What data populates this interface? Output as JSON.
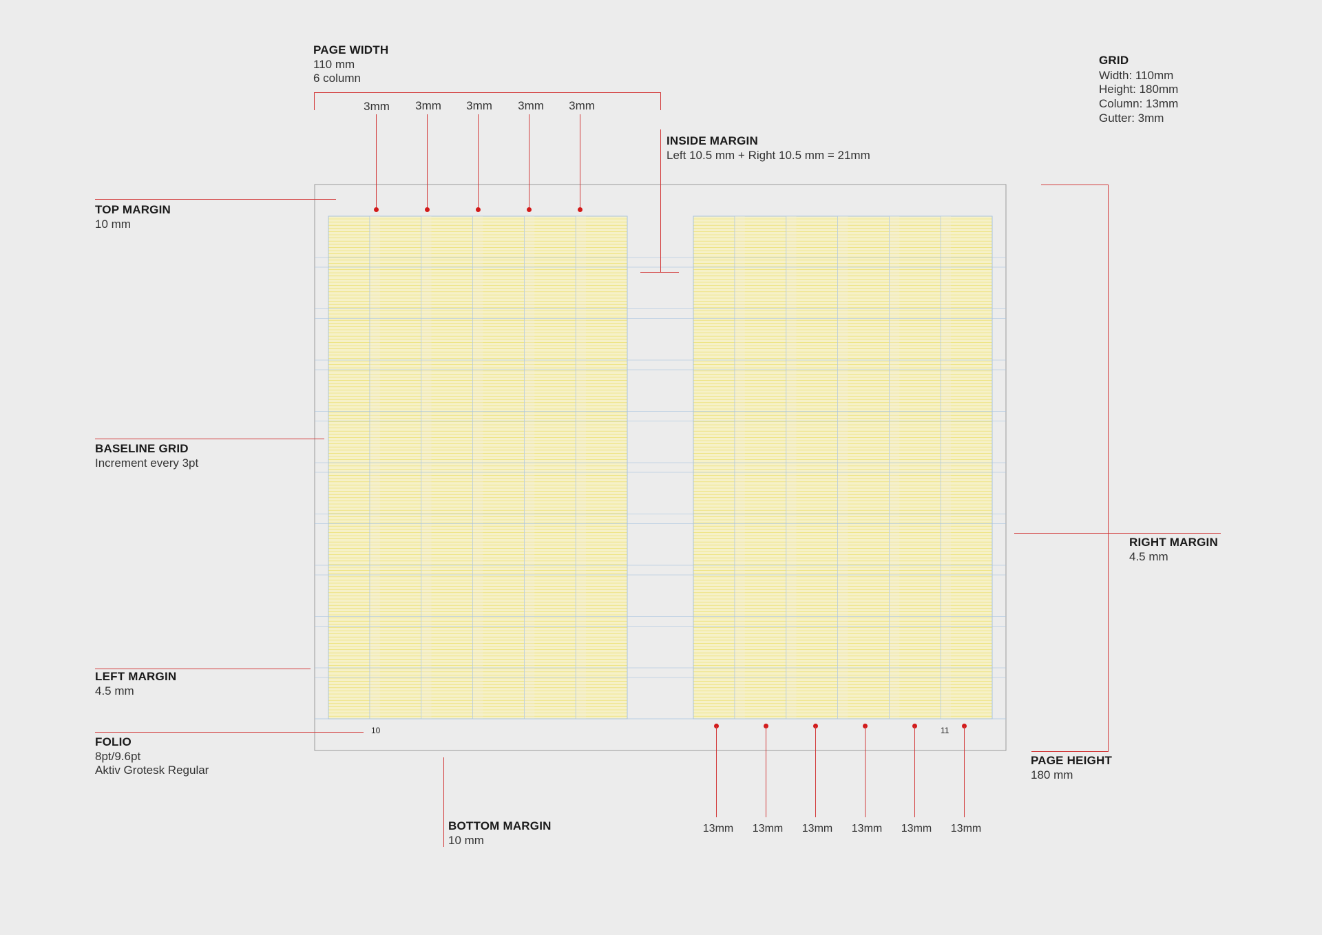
{
  "grid_info": {
    "title": "GRID",
    "lines": [
      "Width: 110mm",
      "Height: 180mm",
      "Column: 13mm",
      "Gutter: 3mm"
    ]
  },
  "page_width": {
    "title": "PAGE WIDTH",
    "lines": [
      "110 mm",
      "6 column"
    ]
  },
  "inside_margin": {
    "title": "INSIDE MARGIN",
    "lines": [
      "Left 10.5 mm + Right 10.5 mm = 21mm"
    ]
  },
  "top_margin": {
    "title": "TOP MARGIN",
    "lines": [
      "10 mm"
    ]
  },
  "baseline_grid": {
    "title": "BASELINE GRID",
    "lines": [
      "Increment every 3pt"
    ]
  },
  "left_margin": {
    "title": "LEFT MARGIN",
    "lines": [
      "4.5 mm"
    ]
  },
  "folio": {
    "title": "FOLIO",
    "lines": [
      "8pt/9.6pt",
      "Aktiv Grotesk Regular"
    ]
  },
  "bottom_margin": {
    "title": "BOTTOM MARGIN",
    "lines": [
      "10 mm"
    ]
  },
  "right_margin": {
    "title": "RIGHT MARGIN",
    "lines": [
      "4.5 mm"
    ]
  },
  "page_height": {
    "title": "PAGE HEIGHT",
    "lines": [
      "180 mm"
    ]
  },
  "gutter_labels": [
    "3mm",
    "3mm",
    "3mm",
    "3mm",
    "3mm"
  ],
  "column_labels": [
    "13mm",
    "13mm",
    "13mm",
    "13mm",
    "13mm",
    "13mm"
  ],
  "folio_numbers": {
    "left": "10",
    "right": "11"
  },
  "colors": {
    "background": "#ececec",
    "annotation": "#d23a3a",
    "dot": "#d21a1a",
    "baseline": "#e8d84a",
    "column_fill": "#f6f1c8",
    "guide": "#a9c4e0",
    "page_border": "#9a9a9a"
  }
}
